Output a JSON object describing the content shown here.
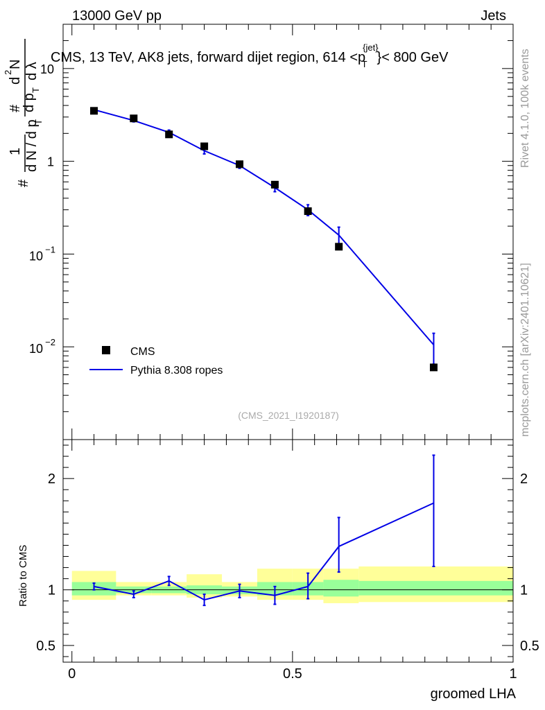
{
  "header": {
    "energy_label": "13000 GeV pp",
    "category_label": "Jets",
    "title_prefix": "CMS, 13 TeV, AK8 jets, forward dijet region, 614 <p",
    "title_super": "{jet}",
    "title_sub": "T",
    "title_suffix": "}< 800 GeV",
    "side_rivet": "Rivet 4.1.0,  100k events",
    "side_mcplots": "mcplots.cern.ch [arXiv:2401.10621]",
    "analysis_id": "(CMS_2021_I1920187)"
  },
  "colors": {
    "mc_line": "#0000e6",
    "band_green": "#99ff99",
    "band_yellow": "#ffff99",
    "data_marker": "#000000"
  },
  "chart_data": [
    {
      "type": "scatter",
      "name": "main",
      "yscale": "log",
      "ylim": [
        0.001,
        30
      ],
      "xlim": [
        -0.02,
        1.0
      ],
      "ylabel_parts": [
        "#",
        "1",
        "d N / d p",
        "T",
        "#",
        "d p",
        "T",
        "d",
        "2",
        "N",
        "d λ"
      ],
      "ytick_labels": [
        "10",
        "1",
        "10",
        "−1",
        "10",
        "−2"
      ],
      "ytick_values": [
        10,
        1,
        0.1,
        0.01
      ],
      "legend": {
        "position": "lower-left",
        "entries": [
          "CMS",
          "Pythia 8.308 ropes"
        ]
      },
      "series": [
        {
          "name": "CMS",
          "x": [
            0.05,
            0.14,
            0.22,
            0.3,
            0.38,
            0.46,
            0.535,
            0.605,
            0.82
          ],
          "y": [
            3.5,
            2.9,
            1.95,
            1.45,
            0.93,
            0.56,
            0.29,
            0.12,
            0.006
          ]
        },
        {
          "name": "Pythia 8.308 ropes",
          "x": [
            0.05,
            0.14,
            0.22,
            0.3,
            0.38,
            0.46,
            0.535,
            0.605,
            0.82
          ],
          "y": [
            3.6,
            2.75,
            2.05,
            1.3,
            0.9,
            0.52,
            0.3,
            0.16,
            0.0105
          ],
          "err_low": [
            0.12,
            0.09,
            0.12,
            0.1,
            0.06,
            0.05,
            0.04,
            0.04,
            0.004
          ],
          "err_high": [
            0.12,
            0.09,
            0.12,
            0.1,
            0.06,
            0.05,
            0.04,
            0.035,
            0.0035
          ]
        }
      ]
    },
    {
      "type": "line",
      "name": "ratio",
      "ylim": [
        0.35,
        2.35
      ],
      "xlim": [
        -0.02,
        1.0
      ],
      "xlabel": "groomed LHA",
      "ylabel": "Ratio to CMS",
      "xtick_values": [
        0,
        0.5,
        1
      ],
      "xtick_labels": [
        "0",
        "0.5",
        "1"
      ],
      "ytick_values": [
        0.5,
        1,
        2
      ],
      "ytick_labels": [
        "0.5",
        "1",
        "2"
      ],
      "bands": {
        "edges": [
          0,
          0.1,
          0.18,
          0.26,
          0.34,
          0.42,
          0.5,
          0.57,
          0.65,
          1.0
        ],
        "green": [
          [
            0.95,
            1.07
          ],
          [
            0.97,
            1.03
          ],
          [
            0.97,
            1.03
          ],
          [
            0.96,
            1.04
          ],
          [
            0.96,
            1.03
          ],
          [
            0.95,
            1.07
          ],
          [
            0.95,
            1.07
          ],
          [
            0.94,
            1.09
          ],
          [
            0.95,
            1.08
          ]
        ],
        "yellow": [
          [
            0.91,
            1.17
          ],
          [
            0.95,
            1.07
          ],
          [
            0.95,
            1.07
          ],
          [
            0.93,
            1.14
          ],
          [
            0.94,
            1.07
          ],
          [
            0.91,
            1.19
          ],
          [
            0.91,
            1.19
          ],
          [
            0.88,
            1.19
          ],
          [
            0.89,
            1.21
          ]
        ]
      },
      "series": [
        {
          "name": "Pythia 8.308 ropes / CMS",
          "x": [
            0.05,
            0.14,
            0.22,
            0.3,
            0.38,
            0.46,
            0.535,
            0.605,
            0.82
          ],
          "y": [
            1.03,
            0.96,
            1.08,
            0.91,
            0.99,
            0.95,
            1.03,
            1.39,
            1.78
          ],
          "err_low": [
            0.03,
            0.03,
            0.04,
            0.05,
            0.06,
            0.08,
            0.11,
            0.23,
            0.57
          ],
          "err_high": [
            0.03,
            0.03,
            0.04,
            0.05,
            0.06,
            0.08,
            0.12,
            0.26,
            0.43
          ]
        }
      ]
    }
  ]
}
